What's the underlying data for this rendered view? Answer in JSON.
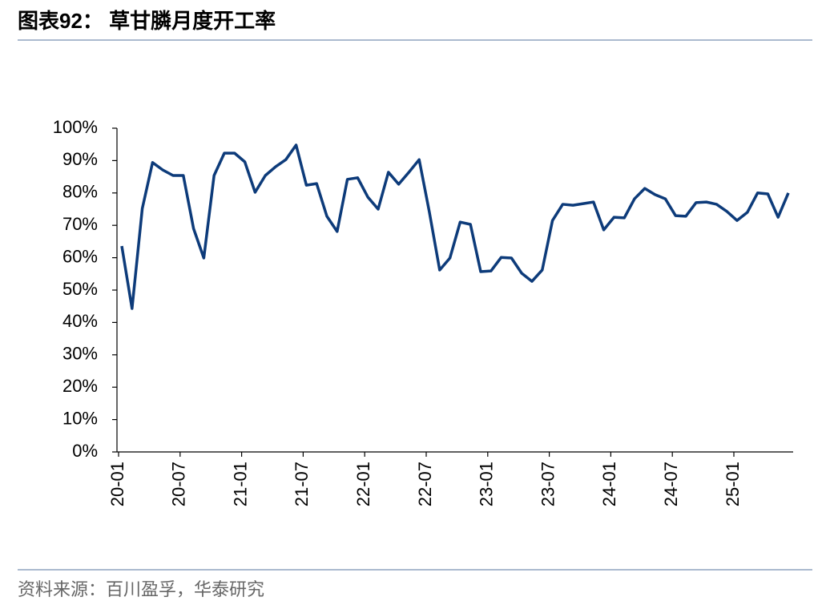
{
  "title": "图表92：  草甘膦月度开工率",
  "source": "资料来源：百川盈孚，华泰研究",
  "chart_data": {
    "type": "line",
    "categories": [
      "20-01",
      null,
      null,
      null,
      null,
      null,
      "20-07",
      null,
      null,
      null,
      null,
      null,
      "21-01",
      null,
      null,
      null,
      null,
      null,
      "21-07",
      null,
      null,
      null,
      null,
      null,
      "22-01",
      null,
      null,
      null,
      null,
      null,
      "22-07",
      null,
      null,
      null,
      null,
      null,
      "23-01",
      null,
      null,
      null,
      null,
      null,
      "23-07",
      null,
      null,
      null,
      null,
      null,
      "24-01",
      null,
      null,
      null,
      null,
      null,
      "24-07",
      null,
      null,
      null,
      null,
      null,
      "25-01",
      null,
      null,
      null,
      null,
      null
    ],
    "series": [
      {
        "color": "#0d3b7a",
        "values": [
          63.6,
          44.3,
          75.2,
          89.4,
          87.1,
          85.4,
          85.4,
          69,
          59.9,
          85.4,
          92.3,
          92.3,
          89.6,
          80.2,
          85.4,
          88.1,
          90.3,
          94.8,
          82.4,
          82.9,
          72.8,
          68.1,
          84.2,
          84.7,
          78.7,
          75,
          86.4,
          82.7,
          86.4,
          90.3,
          74,
          56.2,
          59.9,
          71,
          70.3,
          55.7,
          55.9,
          60.1,
          59.9,
          55.2,
          52.7,
          56.2,
          71.5,
          76.5,
          76.2,
          76.7,
          77.2,
          68.6,
          72.5,
          72.3,
          78.2,
          81.4,
          79.5,
          78.2,
          73,
          72.8,
          77,
          77.2,
          76.5,
          74.3,
          71.5,
          74,
          80,
          79.7,
          72.5,
          80
        ]
      }
    ],
    "ylim": [
      0,
      100
    ],
    "yticks": [
      {
        "value": 0,
        "label": "0%"
      },
      {
        "value": 10,
        "label": "10%"
      },
      {
        "value": 20,
        "label": "20%"
      },
      {
        "value": 30,
        "label": "30%"
      },
      {
        "value": 40,
        "label": "40%"
      },
      {
        "value": 50,
        "label": "50%"
      },
      {
        "value": 60,
        "label": "60%"
      },
      {
        "value": 70,
        "label": "70%"
      },
      {
        "value": 80,
        "label": "80%"
      },
      {
        "value": 90,
        "label": "90%"
      },
      {
        "value": 100,
        "label": "100%"
      }
    ],
    "grid": false
  }
}
